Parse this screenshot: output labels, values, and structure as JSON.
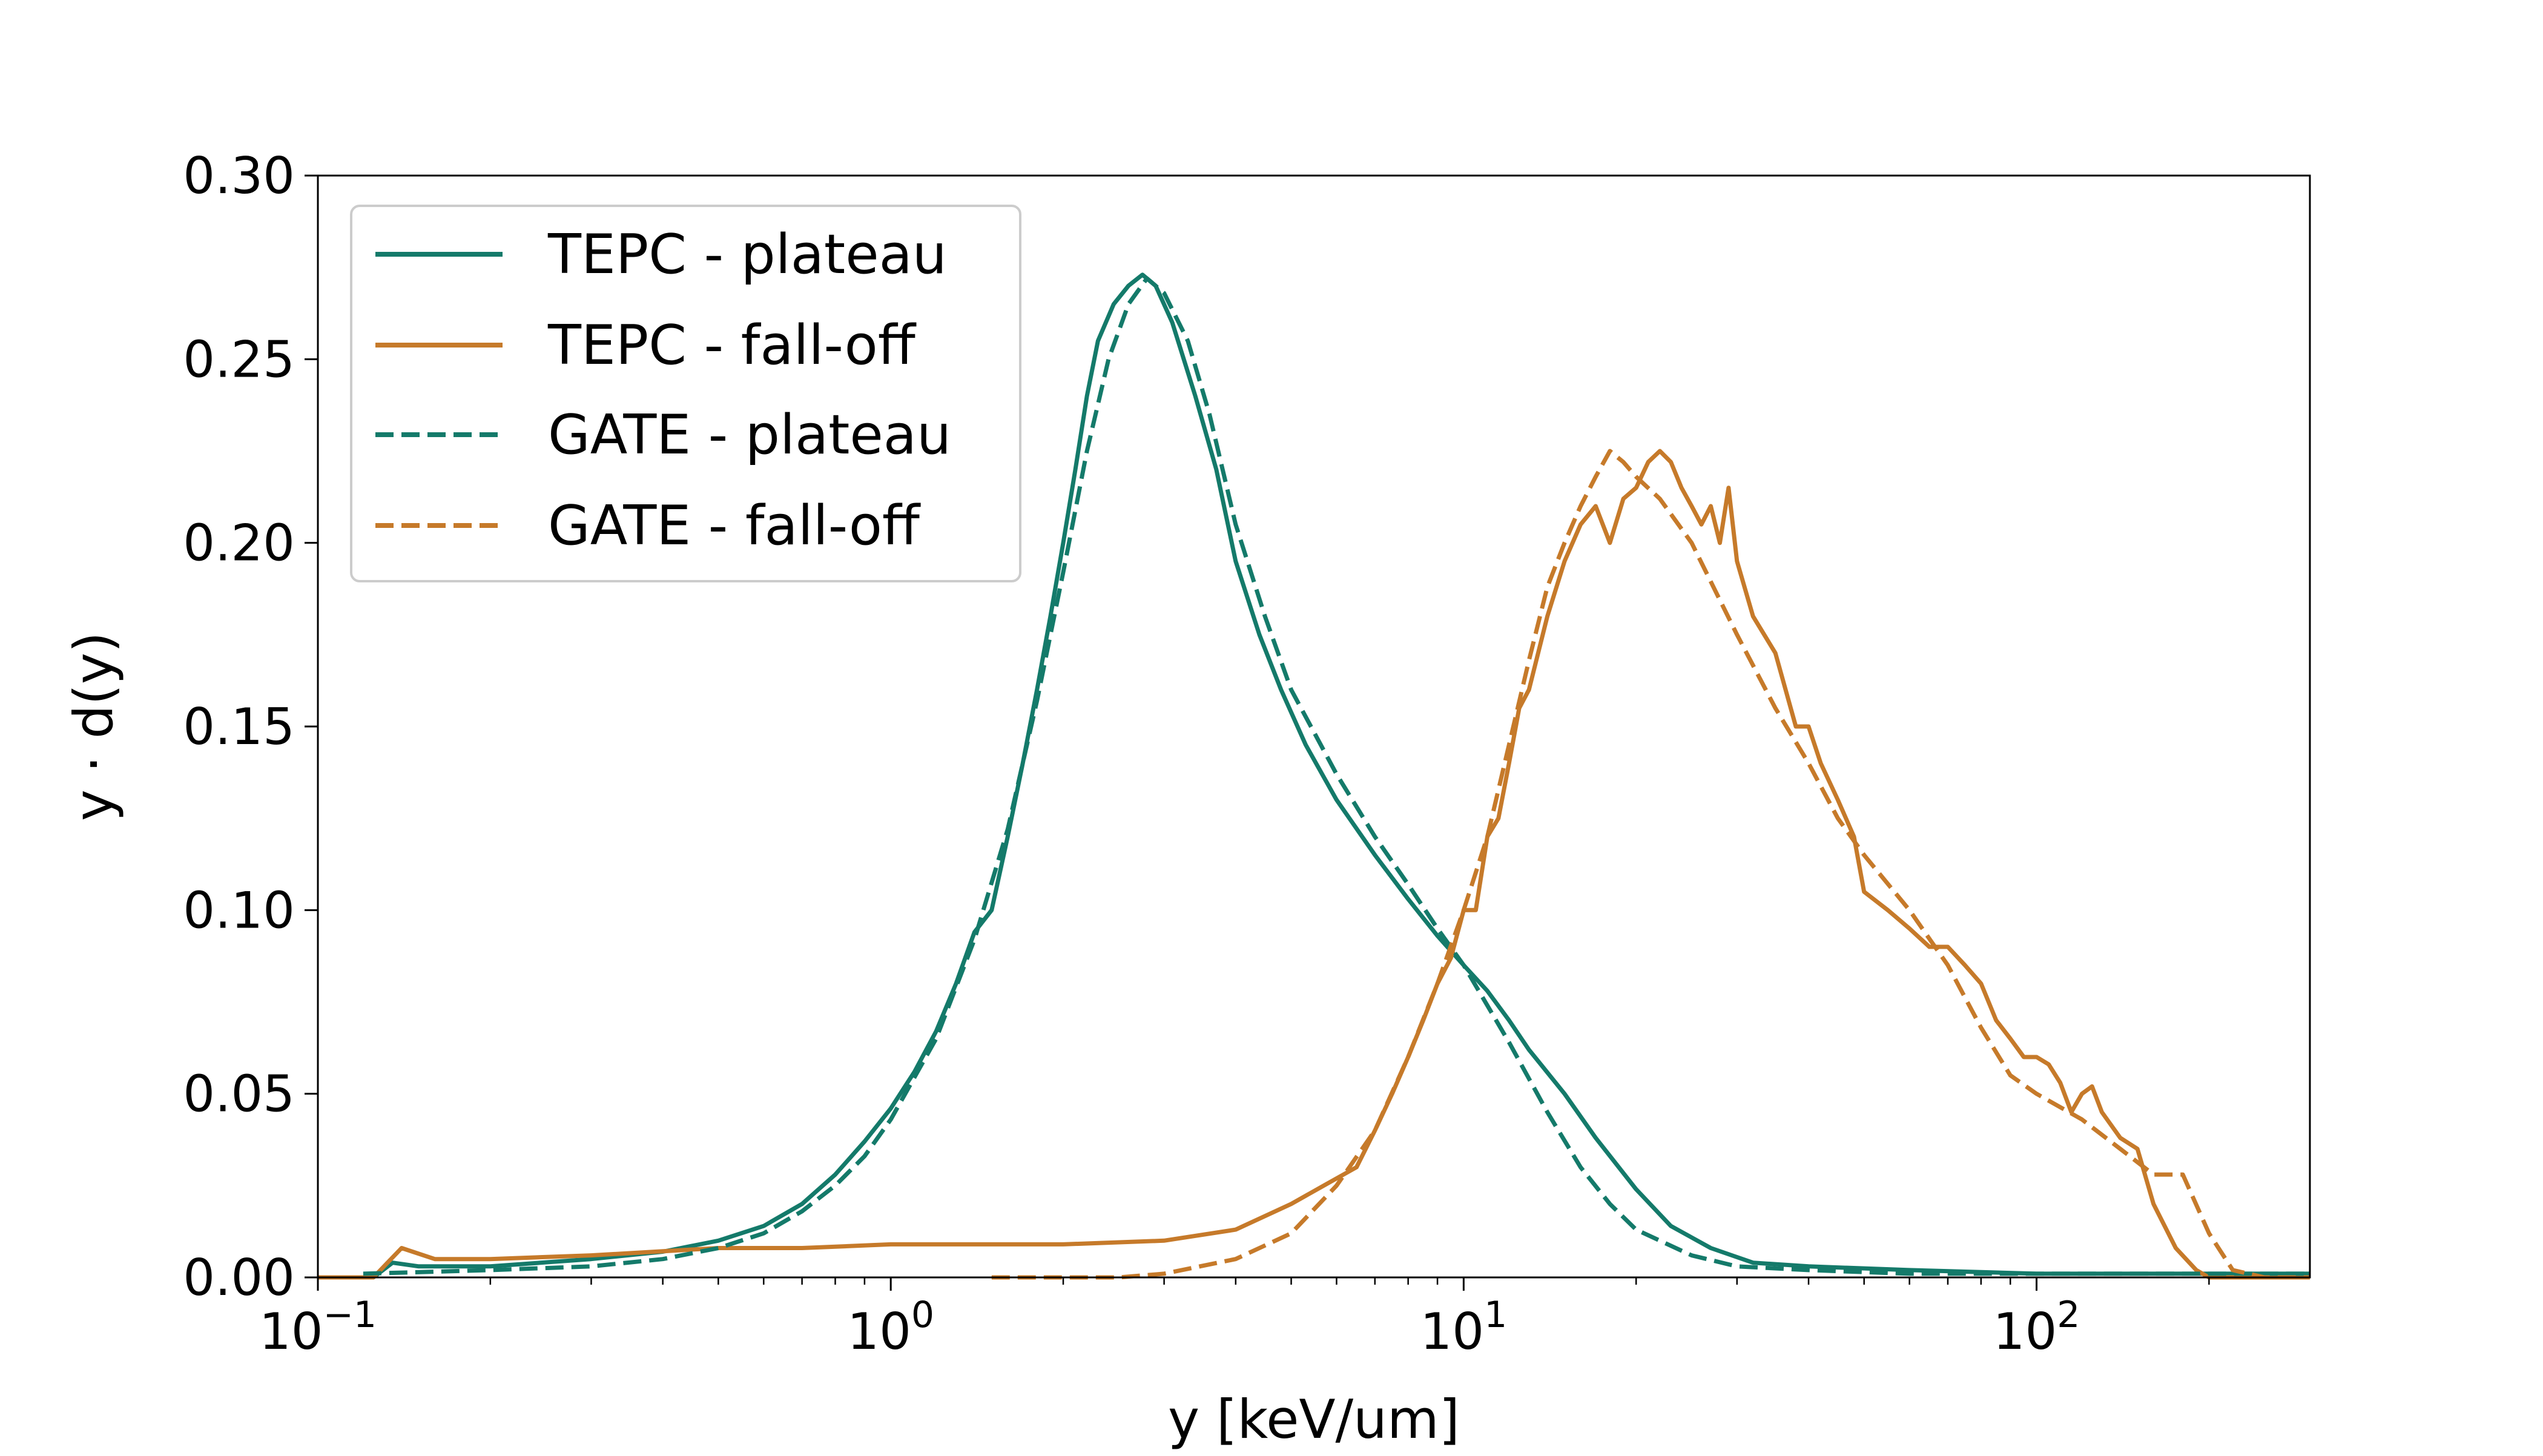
{
  "colors": {
    "plateau": "#147A6A",
    "falloff": "#C67A2A",
    "axis": "#000000",
    "legend_border": "#cccccc",
    "background": "#ffffff"
  },
  "chart_data": {
    "type": "line",
    "title": "",
    "xlabel": "y [keV/um]",
    "ylabel": "y · d(y)",
    "xscale": "log",
    "xlim": [
      0.1,
      300
    ],
    "ylim": [
      0,
      0.3
    ],
    "grid": false,
    "legend_position": "upper left",
    "x_ticks": [
      {
        "value": 0.1,
        "base": "10",
        "exp": "−1"
      },
      {
        "value": 1,
        "base": "10",
        "exp": "0"
      },
      {
        "value": 10,
        "base": "10",
        "exp": "1"
      },
      {
        "value": 100,
        "base": "10",
        "exp": "2"
      }
    ],
    "y_ticks": [
      "0.00",
      "0.05",
      "0.10",
      "0.15",
      "0.20",
      "0.25",
      "0.30"
    ],
    "series": [
      {
        "name": "TEPC - plateau",
        "style": "solid",
        "color_key": "plateau",
        "points": [
          [
            0.1,
            0
          ],
          [
            0.125,
            0
          ],
          [
            0.135,
            0.004
          ],
          [
            0.15,
            0.003
          ],
          [
            0.2,
            0.003
          ],
          [
            0.3,
            0.005
          ],
          [
            0.4,
            0.007
          ],
          [
            0.5,
            0.01
          ],
          [
            0.6,
            0.014
          ],
          [
            0.7,
            0.02
          ],
          [
            0.8,
            0.028
          ],
          [
            0.9,
            0.037
          ],
          [
            1.0,
            0.046
          ],
          [
            1.1,
            0.056
          ],
          [
            1.2,
            0.067
          ],
          [
            1.3,
            0.08
          ],
          [
            1.4,
            0.094
          ],
          [
            1.5,
            0.1
          ],
          [
            1.6,
            0.12
          ],
          [
            1.7,
            0.14
          ],
          [
            1.8,
            0.16
          ],
          [
            1.9,
            0.18
          ],
          [
            2.0,
            0.2
          ],
          [
            2.1,
            0.22
          ],
          [
            2.2,
            0.24
          ],
          [
            2.3,
            0.255
          ],
          [
            2.45,
            0.265
          ],
          [
            2.6,
            0.27
          ],
          [
            2.75,
            0.273
          ],
          [
            2.9,
            0.27
          ],
          [
            3.1,
            0.26
          ],
          [
            3.4,
            0.24
          ],
          [
            3.7,
            0.22
          ],
          [
            4.0,
            0.195
          ],
          [
            4.4,
            0.175
          ],
          [
            4.8,
            0.16
          ],
          [
            5.3,
            0.145
          ],
          [
            6.0,
            0.13
          ],
          [
            7.0,
            0.115
          ],
          [
            8.0,
            0.103
          ],
          [
            9.0,
            0.093
          ],
          [
            10.0,
            0.085
          ],
          [
            11.0,
            0.078
          ],
          [
            12.0,
            0.07
          ],
          [
            13.0,
            0.062
          ],
          [
            15.0,
            0.05
          ],
          [
            17.0,
            0.038
          ],
          [
            20.0,
            0.024
          ],
          [
            23.0,
            0.014
          ],
          [
            27.0,
            0.008
          ],
          [
            32.0,
            0.004
          ],
          [
            40.0,
            0.003
          ],
          [
            60.0,
            0.002
          ],
          [
            100.0,
            0.001
          ],
          [
            150.0,
            0.001
          ],
          [
            200.0,
            0.001
          ],
          [
            300.0,
            0.001
          ]
        ]
      },
      {
        "name": "TEPC - fall-off",
        "style": "solid",
        "color_key": "falloff",
        "points": [
          [
            0.1,
            0
          ],
          [
            0.125,
            0
          ],
          [
            0.14,
            0.008
          ],
          [
            0.16,
            0.005
          ],
          [
            0.2,
            0.005
          ],
          [
            0.3,
            0.006
          ],
          [
            0.5,
            0.008
          ],
          [
            0.7,
            0.008
          ],
          [
            1.0,
            0.009
          ],
          [
            1.5,
            0.009
          ],
          [
            2.0,
            0.009
          ],
          [
            3.0,
            0.01
          ],
          [
            4.0,
            0.013
          ],
          [
            5.0,
            0.02
          ],
          [
            5.7,
            0.025
          ],
          [
            6.5,
            0.03
          ],
          [
            7.0,
            0.04
          ],
          [
            7.5,
            0.05
          ],
          [
            8.0,
            0.06
          ],
          [
            8.5,
            0.07
          ],
          [
            9.0,
            0.08
          ],
          [
            9.5,
            0.087
          ],
          [
            10.0,
            0.1
          ],
          [
            10.5,
            0.1
          ],
          [
            11.0,
            0.12
          ],
          [
            11.5,
            0.125
          ],
          [
            12.0,
            0.14
          ],
          [
            12.5,
            0.155
          ],
          [
            13.0,
            0.16
          ],
          [
            14.0,
            0.18
          ],
          [
            15.0,
            0.195
          ],
          [
            16.0,
            0.205
          ],
          [
            17.0,
            0.21
          ],
          [
            18.0,
            0.2
          ],
          [
            19.0,
            0.212
          ],
          [
            20.0,
            0.215
          ],
          [
            21.0,
            0.222
          ],
          [
            22.0,
            0.225
          ],
          [
            23.0,
            0.222
          ],
          [
            24.0,
            0.215
          ],
          [
            25.0,
            0.21
          ],
          [
            26.0,
            0.205
          ],
          [
            27.0,
            0.21
          ],
          [
            28.0,
            0.2
          ],
          [
            29.0,
            0.215
          ],
          [
            30.0,
            0.195
          ],
          [
            32.0,
            0.18
          ],
          [
            35.0,
            0.17
          ],
          [
            38.0,
            0.15
          ],
          [
            40.0,
            0.15
          ],
          [
            42.0,
            0.14
          ],
          [
            45.0,
            0.13
          ],
          [
            48.0,
            0.12
          ],
          [
            50.0,
            0.105
          ],
          [
            55.0,
            0.1
          ],
          [
            60.0,
            0.095
          ],
          [
            65.0,
            0.09
          ],
          [
            70.0,
            0.09
          ],
          [
            75.0,
            0.085
          ],
          [
            80.0,
            0.08
          ],
          [
            85.0,
            0.07
          ],
          [
            90.0,
            0.065
          ],
          [
            95.0,
            0.06
          ],
          [
            100.0,
            0.06
          ],
          [
            105.0,
            0.058
          ],
          [
            110.0,
            0.053
          ],
          [
            115.0,
            0.045
          ],
          [
            120.0,
            0.05
          ],
          [
            125.0,
            0.052
          ],
          [
            130.0,
            0.045
          ],
          [
            140.0,
            0.038
          ],
          [
            150.0,
            0.035
          ],
          [
            160.0,
            0.02
          ],
          [
            175.0,
            0.008
          ],
          [
            190.0,
            0.002
          ],
          [
            200.0,
            0.0
          ],
          [
            300.0,
            0.0
          ]
        ]
      },
      {
        "name": "GATE - plateau",
        "style": "dashed",
        "color_key": "plateau",
        "points": [
          [
            0.12,
            0.001
          ],
          [
            0.2,
            0.002
          ],
          [
            0.3,
            0.003
          ],
          [
            0.4,
            0.005
          ],
          [
            0.5,
            0.008
          ],
          [
            0.6,
            0.012
          ],
          [
            0.7,
            0.018
          ],
          [
            0.8,
            0.025
          ],
          [
            0.9,
            0.033
          ],
          [
            1.0,
            0.043
          ],
          [
            1.2,
            0.065
          ],
          [
            1.4,
            0.092
          ],
          [
            1.6,
            0.122
          ],
          [
            1.8,
            0.157
          ],
          [
            2.0,
            0.192
          ],
          [
            2.2,
            0.225
          ],
          [
            2.4,
            0.25
          ],
          [
            2.6,
            0.265
          ],
          [
            2.8,
            0.272
          ],
          [
            3.0,
            0.268
          ],
          [
            3.3,
            0.255
          ],
          [
            3.6,
            0.235
          ],
          [
            4.0,
            0.205
          ],
          [
            4.5,
            0.18
          ],
          [
            5.0,
            0.16
          ],
          [
            6.0,
            0.137
          ],
          [
            7.0,
            0.12
          ],
          [
            8.0,
            0.107
          ],
          [
            9.0,
            0.095
          ],
          [
            10.0,
            0.085
          ],
          [
            12.0,
            0.064
          ],
          [
            14.0,
            0.045
          ],
          [
            16.0,
            0.03
          ],
          [
            18.0,
            0.02
          ],
          [
            20.0,
            0.013
          ],
          [
            25.0,
            0.006
          ],
          [
            30.0,
            0.003
          ],
          [
            40.0,
            0.002
          ],
          [
            60.0,
            0.001
          ],
          [
            100.0,
            0.001
          ],
          [
            200.0,
            0.001
          ],
          [
            300.0,
            0.001
          ]
        ]
      },
      {
        "name": "GATE - fall-off",
        "style": "dashed",
        "color_key": "falloff",
        "points": [
          [
            1.5,
            0.0
          ],
          [
            2.5,
            0.0
          ],
          [
            3.0,
            0.001
          ],
          [
            4.0,
            0.005
          ],
          [
            5.0,
            0.012
          ],
          [
            6.0,
            0.025
          ],
          [
            7.0,
            0.04
          ],
          [
            8.0,
            0.06
          ],
          [
            9.0,
            0.08
          ],
          [
            10.0,
            0.1
          ],
          [
            11.0,
            0.12
          ],
          [
            12.0,
            0.145
          ],
          [
            13.0,
            0.168
          ],
          [
            14.0,
            0.188
          ],
          [
            15.0,
            0.2
          ],
          [
            16.0,
            0.21
          ],
          [
            17.0,
            0.218
          ],
          [
            18.0,
            0.225
          ],
          [
            19.0,
            0.222
          ],
          [
            20.0,
            0.218
          ],
          [
            22.0,
            0.212
          ],
          [
            25.0,
            0.2
          ],
          [
            30.0,
            0.175
          ],
          [
            35.0,
            0.155
          ],
          [
            40.0,
            0.14
          ],
          [
            45.0,
            0.125
          ],
          [
            50.0,
            0.115
          ],
          [
            60.0,
            0.1
          ],
          [
            70.0,
            0.085
          ],
          [
            80.0,
            0.068
          ],
          [
            90.0,
            0.055
          ],
          [
            100.0,
            0.05
          ],
          [
            120.0,
            0.043
          ],
          [
            140.0,
            0.035
          ],
          [
            160.0,
            0.028
          ],
          [
            180.0,
            0.028
          ],
          [
            200.0,
            0.012
          ],
          [
            220.0,
            0.002
          ],
          [
            250.0,
            0.0
          ],
          [
            300.0,
            0.0
          ]
        ]
      }
    ]
  }
}
